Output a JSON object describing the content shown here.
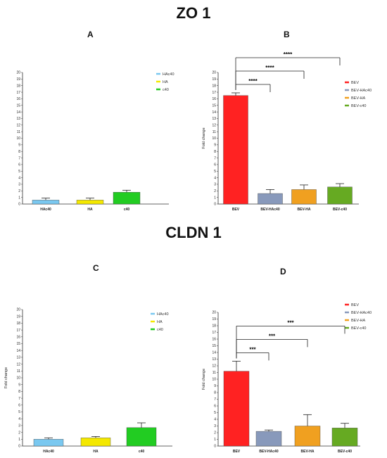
{
  "headings": {
    "top": "ZO 1",
    "bottom": "CLDN 1"
  },
  "chart_data": [
    {
      "panel": "A",
      "type": "bar",
      "categories": [
        "HAc40",
        "HA",
        "c40"
      ],
      "values": [
        0.6,
        0.6,
        1.8
      ],
      "errors": [
        0.3,
        0.3,
        0.3
      ],
      "colors": [
        "#7ac8f0",
        "#f4e800",
        "#22cc22"
      ],
      "legend": [
        "HAc40",
        "HA",
        "c40"
      ],
      "ylabel": "",
      "ylim": [
        0,
        20
      ],
      "yticks": [
        "0",
        "1",
        "2",
        "3",
        "4",
        "5",
        "6",
        "7",
        "8",
        "9",
        "10",
        "11",
        "12",
        "13",
        "14",
        "15",
        "16",
        "17",
        "18",
        "19",
        "20"
      ],
      "significance": []
    },
    {
      "panel": "B",
      "type": "bar",
      "categories": [
        "BEV",
        "BEV-HAc40",
        "BEV-HA",
        "BEV-c40"
      ],
      "values": [
        16.5,
        1.6,
        2.2,
        2.6
      ],
      "errors": [
        0.4,
        0.6,
        0.7,
        0.5
      ],
      "colors": [
        "#ff2222",
        "#8899bb",
        "#f0a020",
        "#66aa22"
      ],
      "legend": [
        "BEV",
        "BEV-HAc40",
        "BEV-HA",
        "BEV-c40"
      ],
      "ylabel": "Fold change",
      "ylim": [
        0,
        20
      ],
      "yticks": [
        "0",
        "1",
        "2",
        "3",
        "4",
        "5",
        "6",
        "7",
        "8",
        "9",
        "10",
        "11",
        "12",
        "13",
        "14",
        "15",
        "16",
        "17",
        "18",
        "19",
        "20"
      ],
      "significance": [
        {
          "to": 1,
          "label": "****"
        },
        {
          "to": 2,
          "label": "****"
        },
        {
          "to": 3,
          "label": "****"
        }
      ]
    },
    {
      "panel": "C",
      "type": "bar",
      "categories": [
        "HAc40",
        "HA",
        "c40"
      ],
      "values": [
        1.0,
        1.2,
        2.7
      ],
      "errors": [
        0.2,
        0.2,
        0.7
      ],
      "colors": [
        "#7ac8f0",
        "#f4e800",
        "#22cc22"
      ],
      "legend": [
        "HAc40",
        "HA",
        "c40"
      ],
      "ylabel": "Fold change",
      "ylim": [
        0,
        20
      ],
      "yticks": [
        "0",
        "1",
        "2",
        "3",
        "4",
        "5",
        "6",
        "7",
        "8",
        "9",
        "10",
        "11",
        "12",
        "13",
        "14",
        "15",
        "16",
        "17",
        "18",
        "19",
        "20"
      ],
      "significance": []
    },
    {
      "panel": "D",
      "type": "bar",
      "categories": [
        "BEV",
        "BEV-HAc40",
        "BEV-HA",
        "BEV-c40"
      ],
      "values": [
        11.2,
        2.2,
        3.0,
        2.7
      ],
      "errors": [
        1.5,
        0.2,
        1.7,
        0.7
      ],
      "colors": [
        "#ff2222",
        "#8899bb",
        "#f0a020",
        "#66aa22"
      ],
      "legend": [
        "BEV",
        "BEV-HAc40",
        "BEV-HA",
        "BEV-c40"
      ],
      "ylabel": "Fold change",
      "ylim": [
        0,
        20
      ],
      "yticks": [
        "0",
        "1",
        "2",
        "3",
        "4",
        "5",
        "6",
        "7",
        "8",
        "9",
        "10",
        "11",
        "12",
        "13",
        "14",
        "15",
        "16",
        "17",
        "18",
        "19",
        "20"
      ],
      "significance": [
        {
          "to": 1,
          "label": "***"
        },
        {
          "to": 2,
          "label": "***"
        },
        {
          "to": 3,
          "label": "***"
        }
      ]
    }
  ]
}
